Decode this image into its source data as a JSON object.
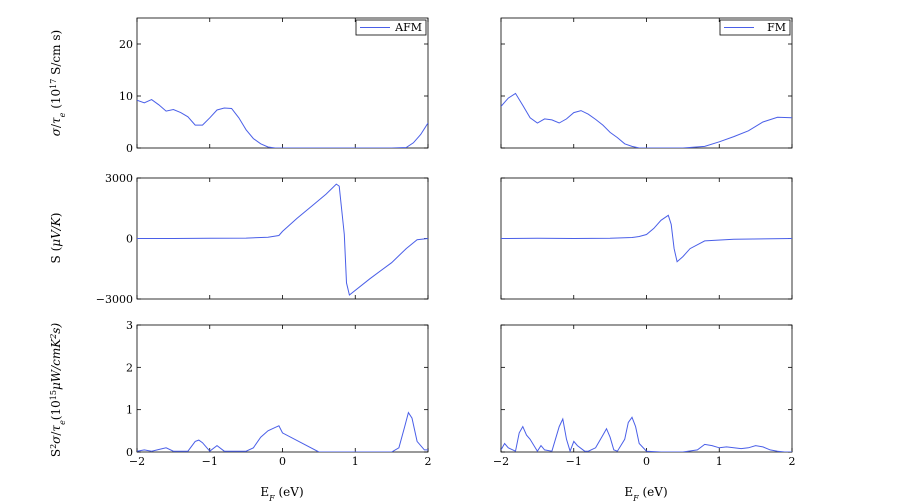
{
  "chart_data": [
    {
      "type": "line",
      "id": "cond-afm",
      "ylabel": "σ/τ_e (10^17 S/cm s)",
      "xlim": [
        -2,
        2
      ],
      "ylim": [
        0,
        25
      ],
      "xticks": [],
      "yticks": [
        0,
        10,
        20
      ],
      "legend": "top-right",
      "series": [
        {
          "name": "AFM",
          "color": "#4a5fe8",
          "x": [
            -2,
            -1.9,
            -1.8,
            -1.7,
            -1.6,
            -1.5,
            -1.4,
            -1.3,
            -1.2,
            -1.1,
            -1.0,
            -0.9,
            -0.8,
            -0.7,
            -0.6,
            -0.5,
            -0.4,
            -0.3,
            -0.2,
            -0.1,
            0.0,
            0.5,
            1.0,
            1.5,
            1.7,
            1.8,
            1.9,
            2.0
          ],
          "y": [
            9.2,
            8.7,
            9.3,
            8.3,
            7.1,
            7.4,
            6.8,
            6.0,
            4.4,
            4.4,
            5.8,
            7.3,
            7.7,
            7.6,
            5.8,
            3.5,
            1.8,
            0.8,
            0.2,
            0.0,
            0.0,
            0.0,
            0.0,
            0.0,
            0.1,
            1.0,
            2.6,
            4.8
          ]
        }
      ]
    },
    {
      "type": "line",
      "id": "cond-fm",
      "xlim": [
        -2,
        2
      ],
      "ylim": [
        0,
        25
      ],
      "xticks": [],
      "yticks": [],
      "legend": "top-right",
      "series": [
        {
          "name": "FM",
          "color": "#4a5fe8",
          "x": [
            -2.0,
            -1.9,
            -1.8,
            -1.7,
            -1.6,
            -1.5,
            -1.4,
            -1.3,
            -1.2,
            -1.1,
            -1.0,
            -0.9,
            -0.8,
            -0.7,
            -0.6,
            -0.5,
            -0.4,
            -0.3,
            -0.2,
            -0.1,
            0.0,
            0.2,
            0.5,
            0.8,
            1.0,
            1.2,
            1.4,
            1.6,
            1.8,
            2.0
          ],
          "y": [
            8.0,
            9.6,
            10.5,
            8.2,
            5.8,
            4.8,
            5.6,
            5.4,
            4.8,
            5.6,
            6.8,
            7.2,
            6.5,
            5.5,
            4.4,
            3.0,
            2.0,
            0.8,
            0.3,
            0.0,
            0.0,
            0.0,
            0.0,
            0.3,
            1.2,
            2.2,
            3.3,
            5.0,
            5.9,
            5.8
          ]
        }
      ]
    },
    {
      "type": "line",
      "id": "seebeck-afm",
      "ylabel": "S (μV/K)",
      "xlim": [
        -2,
        2
      ],
      "ylim": [
        -3000,
        3000
      ],
      "xticks": [],
      "yticks": [
        -3000,
        0,
        3000
      ],
      "series": [
        {
          "name": "AFM",
          "color": "#4a5fe8",
          "x": [
            -2.0,
            -1.5,
            -1.0,
            -0.5,
            -0.2,
            -0.05,
            0.0,
            0.2,
            0.4,
            0.6,
            0.74,
            0.78,
            0.85,
            0.88,
            0.92,
            1.2,
            1.5,
            1.7,
            1.85,
            2.0
          ],
          "y": [
            0,
            0,
            10,
            20,
            60,
            150,
            350,
            1000,
            1600,
            2200,
            2700,
            2600,
            200,
            -2200,
            -2800,
            -2000,
            -1200,
            -500,
            -60,
            0
          ]
        }
      ]
    },
    {
      "type": "line",
      "id": "seebeck-fm",
      "xlim": [
        -2,
        2
      ],
      "ylim": [
        -3000,
        3000
      ],
      "xticks": [],
      "yticks": [],
      "series": [
        {
          "name": "FM",
          "color": "#4a5fe8",
          "x": [
            -2.0,
            -1.5,
            -1.0,
            -0.5,
            -0.2,
            -0.1,
            0.0,
            0.1,
            0.2,
            0.3,
            0.34,
            0.38,
            0.42,
            0.5,
            0.6,
            0.8,
            1.2,
            2.0
          ],
          "y": [
            0,
            10,
            0,
            10,
            50,
            100,
            200,
            500,
            900,
            1150,
            700,
            -500,
            -1150,
            -900,
            -500,
            -120,
            -40,
            0
          ]
        }
      ]
    },
    {
      "type": "line",
      "id": "pf-afm",
      "ylabel": "S²σ/τ_e(10^15 μW/cmK² s)",
      "xlabel": "E_F (eV)",
      "xlim": [
        -2,
        2
      ],
      "ylim": [
        0,
        3
      ],
      "xticks": [
        -2,
        -1,
        0,
        1,
        2
      ],
      "yticks": [
        0,
        1,
        2,
        3
      ],
      "series": [
        {
          "name": "AFM",
          "color": "#4a5fe8",
          "x": [
            -2.0,
            -1.9,
            -1.8,
            -1.7,
            -1.6,
            -1.5,
            -1.3,
            -1.2,
            -1.15,
            -1.1,
            -1.0,
            -0.9,
            -0.8,
            -0.5,
            -0.4,
            -0.3,
            -0.2,
            -0.1,
            -0.05,
            0.0,
            0.5,
            1.0,
            1.5,
            1.6,
            1.68,
            1.73,
            1.78,
            1.85,
            1.95,
            2.0
          ],
          "y": [
            0.02,
            0.05,
            0.02,
            0.06,
            0.1,
            0.02,
            0.02,
            0.25,
            0.28,
            0.22,
            0.02,
            0.15,
            0.02,
            0.02,
            0.1,
            0.35,
            0.5,
            0.58,
            0.62,
            0.45,
            0.0,
            0.0,
            0.0,
            0.1,
            0.6,
            0.93,
            0.8,
            0.25,
            0.05,
            0.05
          ]
        }
      ]
    },
    {
      "type": "line",
      "id": "pf-fm",
      "xlabel": "E_F (eV)",
      "xlim": [
        -2,
        2
      ],
      "ylim": [
        0,
        3
      ],
      "xticks": [
        -2,
        -1,
        0,
        1,
        2
      ],
      "yticks": [],
      "series": [
        {
          "name": "FM",
          "color": "#4a5fe8",
          "x": [
            -2.0,
            -1.95,
            -1.9,
            -1.8,
            -1.75,
            -1.7,
            -1.65,
            -1.6,
            -1.5,
            -1.45,
            -1.4,
            -1.3,
            -1.2,
            -1.15,
            -1.1,
            -1.05,
            -1.0,
            -0.95,
            -0.85,
            -0.8,
            -0.7,
            -0.6,
            -0.55,
            -0.5,
            -0.45,
            -0.4,
            -0.3,
            -0.25,
            -0.2,
            -0.15,
            -0.1,
            0.0,
            0.2,
            0.5,
            0.7,
            0.8,
            0.9,
            1.0,
            1.1,
            1.2,
            1.3,
            1.4,
            1.5,
            1.6,
            1.7,
            1.8,
            1.9,
            2.0
          ],
          "y": [
            0.05,
            0.2,
            0.1,
            0.02,
            0.45,
            0.6,
            0.4,
            0.3,
            0.02,
            0.15,
            0.05,
            0.02,
            0.6,
            0.78,
            0.3,
            0.02,
            0.25,
            0.15,
            0.02,
            0.02,
            0.1,
            0.4,
            0.55,
            0.35,
            0.05,
            0.02,
            0.3,
            0.7,
            0.82,
            0.6,
            0.2,
            0.02,
            0.0,
            0.0,
            0.05,
            0.18,
            0.15,
            0.1,
            0.12,
            0.1,
            0.08,
            0.1,
            0.15,
            0.12,
            0.05,
            0.02,
            0.0,
            0.0
          ]
        }
      ]
    }
  ]
}
